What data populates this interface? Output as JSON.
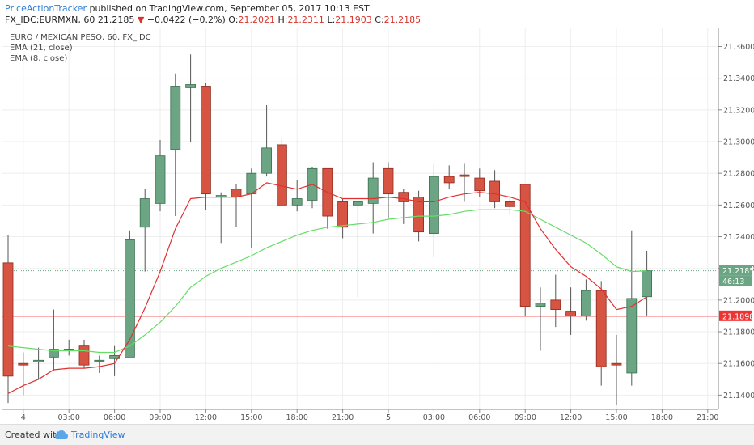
{
  "header": {
    "author": "PriceActionTracker",
    "published_text": "published on TradingView.com, September 05, 2017 10:13 EST",
    "symbol_info": "FX_IDC:EURMXN, 60",
    "last": "21.2185",
    "change_arrow": "▼",
    "change": "−0.0422 (−0.2%)",
    "o_label": "O:",
    "o": "21.2021",
    "h_label": "H:",
    "h": "21.2311",
    "l_label": "L:",
    "l": "21.1903",
    "c_label": "C:",
    "c": "21.2185"
  },
  "legend": {
    "series_title": "EURO / MEXICAN PESO, 60, FX_IDC",
    "ema21": "EMA (21, close)",
    "ema8": "EMA (8, close)"
  },
  "footer": {
    "created_with": "Created with",
    "brand": "TradingView",
    "logo_icon": "tradingview-cloud-icon"
  },
  "chart_data": {
    "type": "candlestick",
    "colors": {
      "up": "#6ba583",
      "down": "#d75442",
      "ema21": "#66dd66",
      "ema8": "#e03030",
      "hline": "#ee3333"
    },
    "x_tick_labels": [
      "4",
      "03:00",
      "06:00",
      "09:00",
      "12:00",
      "15:00",
      "18:00",
      "21:00",
      "5",
      "03:00",
      "06:00",
      "09:00",
      "12:00",
      "15:00",
      "18:00",
      "21:00"
    ],
    "x_tick_index": [
      1,
      4,
      7,
      10,
      13,
      16,
      19,
      22,
      25,
      28,
      31,
      34,
      37,
      40,
      43,
      46
    ],
    "y_ticks": [
      "21.3600",
      "21.3400",
      "21.3200",
      "21.3000",
      "21.2800",
      "21.2600",
      "21.2400",
      "21.2200",
      "21.2000",
      "21.1800",
      "21.1600",
      "21.1400"
    ],
    "ylim": [
      21.131,
      21.372
    ],
    "price_label": "21.2185",
    "countdown_label": "46:13",
    "hline_label": "21.1898",
    "price_value": 21.2185,
    "hline_value": 21.1898,
    "candles": [
      {
        "o": 21.2235,
        "h": 21.241,
        "l": 21.135,
        "c": 21.152
      },
      {
        "o": 21.16,
        "h": 21.167,
        "l": 21.14,
        "c": 21.159
      },
      {
        "o": 21.161,
        "h": 21.17,
        "l": 21.15,
        "c": 21.162
      },
      {
        "o": 21.164,
        "h": 21.194,
        "l": 21.155,
        "c": 21.169
      },
      {
        "o": 21.169,
        "h": 21.175,
        "l": 21.165,
        "c": 21.168
      },
      {
        "o": 21.171,
        "h": 21.175,
        "l": 21.157,
        "c": 21.159
      },
      {
        "o": 21.162,
        "h": 21.165,
        "l": 21.154,
        "c": 21.162
      },
      {
        "o": 21.163,
        "h": 21.171,
        "l": 21.152,
        "c": 21.165
      },
      {
        "o": 21.164,
        "h": 21.244,
        "l": 21.164,
        "c": 21.238
      },
      {
        "o": 21.246,
        "h": 21.27,
        "l": 21.218,
        "c": 21.264
      },
      {
        "o": 21.261,
        "h": 21.301,
        "l": 21.256,
        "c": 21.291
      },
      {
        "o": 21.295,
        "h": 21.343,
        "l": 21.253,
        "c": 21.335
      },
      {
        "o": 21.334,
        "h": 21.355,
        "l": 21.3,
        "c": 21.336
      },
      {
        "o": 21.335,
        "h": 21.337,
        "l": 21.257,
        "c": 21.267
      },
      {
        "o": 21.265,
        "h": 21.268,
        "l": 21.236,
        "c": 21.266
      },
      {
        "o": 21.27,
        "h": 21.273,
        "l": 21.246,
        "c": 21.265
      },
      {
        "o": 21.267,
        "h": 21.283,
        "l": 21.233,
        "c": 21.28
      },
      {
        "o": 21.28,
        "h": 21.323,
        "l": 21.278,
        "c": 21.296
      },
      {
        "o": 21.298,
        "h": 21.302,
        "l": 21.26,
        "c": 21.26
      },
      {
        "o": 21.26,
        "h": 21.276,
        "l": 21.256,
        "c": 21.264
      },
      {
        "o": 21.263,
        "h": 21.284,
        "l": 21.258,
        "c": 21.283
      },
      {
        "o": 21.283,
        "h": 21.283,
        "l": 21.245,
        "c": 21.253
      },
      {
        "o": 21.262,
        "h": 21.264,
        "l": 21.239,
        "c": 21.246
      },
      {
        "o": 21.26,
        "h": 21.262,
        "l": 21.202,
        "c": 21.262
      },
      {
        "o": 21.261,
        "h": 21.287,
        "l": 21.242,
        "c": 21.277
      },
      {
        "o": 21.283,
        "h": 21.287,
        "l": 21.252,
        "c": 21.267
      },
      {
        "o": 21.268,
        "h": 21.27,
        "l": 21.248,
        "c": 21.262
      },
      {
        "o": 21.265,
        "h": 21.269,
        "l": 21.237,
        "c": 21.243
      },
      {
        "o": 21.242,
        "h": 21.286,
        "l": 21.227,
        "c": 21.278
      },
      {
        "o": 21.278,
        "h": 21.285,
        "l": 21.27,
        "c": 21.274
      },
      {
        "o": 21.279,
        "h": 21.286,
        "l": 21.262,
        "c": 21.278
      },
      {
        "o": 21.277,
        "h": 21.283,
        "l": 21.265,
        "c": 21.269
      },
      {
        "o": 21.275,
        "h": 21.282,
        "l": 21.258,
        "c": 21.262
      },
      {
        "o": 21.262,
        "h": 21.266,
        "l": 21.254,
        "c": 21.259
      },
      {
        "o": 21.273,
        "h": 21.273,
        "l": 21.19,
        "c": 21.196
      },
      {
        "o": 21.196,
        "h": 21.208,
        "l": 21.168,
        "c": 21.198
      },
      {
        "o": 21.2,
        "h": 21.216,
        "l": 21.183,
        "c": 21.194
      },
      {
        "o": 21.193,
        "h": 21.208,
        "l": 21.178,
        "c": 21.19
      },
      {
        "o": 21.19,
        "h": 21.213,
        "l": 21.187,
        "c": 21.206
      },
      {
        "o": 21.206,
        "h": 21.212,
        "l": 21.146,
        "c": 21.158
      },
      {
        "o": 21.16,
        "h": 21.178,
        "l": 21.134,
        "c": 21.159
      },
      {
        "o": 21.154,
        "h": 21.244,
        "l": 21.146,
        "c": 21.201
      },
      {
        "o": 21.2021,
        "h": 21.2311,
        "l": 21.1903,
        "c": 21.2185
      }
    ],
    "ema21": [
      21.171,
      21.17,
      21.169,
      21.168,
      21.168,
      21.168,
      21.167,
      21.167,
      21.171,
      21.178,
      21.186,
      21.196,
      21.208,
      21.215,
      21.22,
      21.224,
      21.228,
      21.233,
      21.237,
      21.241,
      21.244,
      21.246,
      21.247,
      21.248,
      21.249,
      21.251,
      21.252,
      21.253,
      21.253,
      21.254,
      21.256,
      21.257,
      21.257,
      21.257,
      21.256,
      21.251,
      21.246,
      21.241,
      21.236,
      21.229,
      21.221,
      21.218,
      21.2185
    ],
    "ema8": [
      21.141,
      21.146,
      21.15,
      21.156,
      21.157,
      21.157,
      21.158,
      21.16,
      21.175,
      21.195,
      21.218,
      21.245,
      21.264,
      21.265,
      21.265,
      21.265,
      21.267,
      21.274,
      21.272,
      21.27,
      21.273,
      21.268,
      21.264,
      21.264,
      21.264,
      21.265,
      21.264,
      21.262,
      21.262,
      21.265,
      21.267,
      21.268,
      21.267,
      21.265,
      21.262,
      21.245,
      21.232,
      21.221,
      21.215,
      21.207,
      21.194,
      21.196,
      21.202
    ]
  }
}
